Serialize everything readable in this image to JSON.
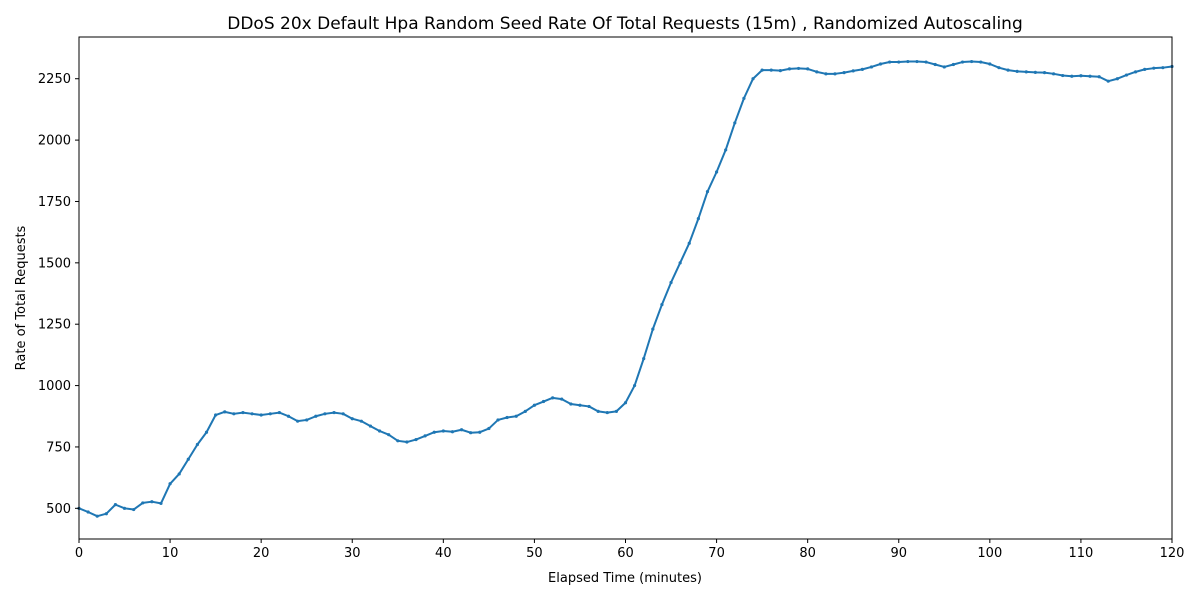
{
  "chart_data": {
    "type": "line",
    "title": "DDoS 20x Default Hpa Random Seed Rate Of Total Requests (15m) , Randomized Autoscaling",
    "xlabel": "Elapsed Time (minutes)",
    "ylabel": "Rate of Total Requests",
    "xlim": [
      0,
      120
    ],
    "ylim": [
      375,
      2420
    ],
    "xticks": [
      0,
      10,
      20,
      30,
      40,
      50,
      60,
      70,
      80,
      90,
      100,
      110,
      120
    ],
    "yticks": [
      500,
      750,
      1000,
      1250,
      1500,
      1750,
      2000,
      2250
    ],
    "grid": false,
    "series_color": "#1f77b4",
    "x": [
      0,
      1,
      2,
      3,
      4,
      5,
      6,
      7,
      8,
      9,
      10,
      11,
      12,
      13,
      14,
      15,
      16,
      17,
      18,
      19,
      20,
      21,
      22,
      23,
      24,
      25,
      26,
      27,
      28,
      29,
      30,
      31,
      32,
      33,
      34,
      35,
      36,
      37,
      38,
      39,
      40,
      41,
      42,
      43,
      44,
      45,
      46,
      47,
      48,
      49,
      50,
      51,
      52,
      53,
      54,
      55,
      56,
      57,
      58,
      59,
      60,
      61,
      62,
      63,
      64,
      65,
      66,
      67,
      68,
      69,
      70,
      71,
      72,
      73,
      74,
      75,
      76,
      77,
      78,
      79,
      80,
      81,
      82,
      83,
      84,
      85,
      86,
      87,
      88,
      89,
      90,
      91,
      92,
      93,
      94,
      95,
      96,
      97,
      98,
      99,
      100,
      101,
      102,
      103,
      104,
      105,
      106,
      107,
      108,
      109,
      110,
      111,
      112,
      113,
      114,
      115,
      116,
      117,
      118,
      119,
      120
    ],
    "y": [
      500,
      485,
      468,
      478,
      515,
      500,
      495,
      522,
      527,
      520,
      600,
      640,
      700,
      760,
      810,
      880,
      893,
      885,
      890,
      885,
      880,
      885,
      890,
      875,
      855,
      860,
      875,
      885,
      890,
      885,
      865,
      855,
      835,
      815,
      800,
      775,
      770,
      780,
      795,
      810,
      815,
      812,
      820,
      808,
      810,
      825,
      860,
      870,
      875,
      895,
      920,
      935,
      950,
      945,
      925,
      920,
      915,
      895,
      890,
      895,
      930,
      1000,
      1110,
      1230,
      1330,
      1420,
      1500,
      1580,
      1680,
      1790,
      1870,
      1960,
      2070,
      2170,
      2250,
      2285,
      2285,
      2283,
      2290,
      2292,
      2290,
      2278,
      2270,
      2270,
      2275,
      2282,
      2288,
      2298,
      2310,
      2318,
      2318,
      2320,
      2320,
      2318,
      2308,
      2298,
      2308,
      2318,
      2320,
      2318,
      2310,
      2295,
      2285,
      2280,
      2278,
      2276,
      2275,
      2270,
      2263,
      2260,
      2262,
      2260,
      2258,
      2240,
      2250,
      2265,
      2278,
      2288,
      2293,
      2295,
      2300
    ]
  }
}
